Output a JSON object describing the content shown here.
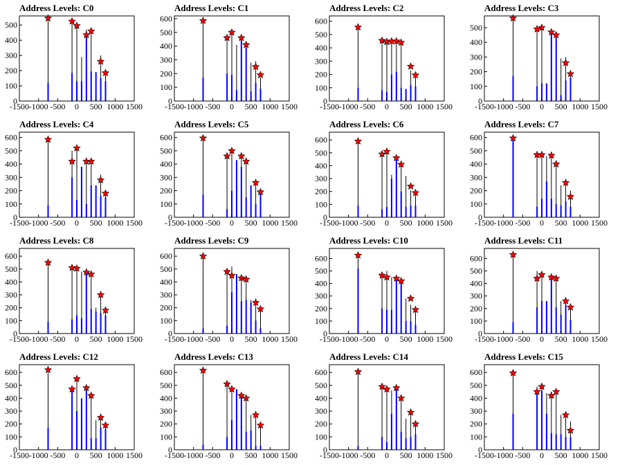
{
  "figure": {
    "layout": {
      "rows": 4,
      "cols": 4
    },
    "colors": {
      "spike_blue": "#0000ff",
      "spike_black": "#000000",
      "star_fill": "#ff0000",
      "star_stroke": "#000000"
    },
    "marker": "red-star"
  },
  "chart_data": [
    {
      "type": "bar",
      "title": "Address Levels: C0",
      "xlim": [
        -1500,
        1500
      ],
      "ylim": [
        0,
        560
      ],
      "xticks": [
        -1500,
        -1000,
        -500,
        0,
        500,
        1000,
        1500
      ],
      "yticks": [
        0,
        100,
        200,
        300,
        400,
        500
      ],
      "x": [
        -750,
        -125,
        0,
        125,
        250,
        375,
        500,
        625,
        750
      ],
      "values": [
        540,
        520,
        495,
        290,
        470,
        455,
        190,
        300,
        170
      ],
      "blue_values": [
        120,
        185,
        130,
        130,
        420,
        195,
        190,
        150,
        130
      ],
      "peaks_x": [
        -750,
        -125,
        0,
        250,
        375,
        625,
        750
      ],
      "peaks_y": [
        545,
        525,
        495,
        435,
        460,
        260,
        185
      ]
    },
    {
      "type": "bar",
      "title": "Address Levels: C1",
      "xlim": [
        -1500,
        1500
      ],
      "ylim": [
        0,
        620
      ],
      "xticks": [
        -1500,
        -1000,
        -500,
        0,
        500,
        1000,
        1500
      ],
      "yticks": [
        0,
        100,
        200,
        300,
        400,
        500,
        600
      ],
      "x": [
        -750,
        -125,
        0,
        125,
        250,
        375,
        500,
        625,
        750
      ],
      "values": [
        590,
        460,
        500,
        410,
        470,
        410,
        280,
        290,
        170
      ],
      "blue_values": [
        170,
        200,
        190,
        80,
        440,
        390,
        70,
        130,
        90
      ],
      "peaks_x": [
        -750,
        -125,
        0,
        250,
        375,
        625,
        750
      ],
      "peaks_y": [
        585,
        460,
        500,
        460,
        410,
        250,
        190
      ]
    },
    {
      "type": "bar",
      "title": "Address Levels: C2",
      "xlim": [
        -1500,
        1500
      ],
      "ylim": [
        0,
        640
      ],
      "xticks": [
        -1500,
        -1000,
        -500,
        0,
        500,
        1000,
        1500
      ],
      "yticks": [
        0,
        100,
        200,
        300,
        400,
        500,
        600
      ],
      "x": [
        -750,
        -125,
        0,
        125,
        250,
        375,
        500,
        625,
        750
      ],
      "values": [
        560,
        460,
        470,
        460,
        460,
        450,
        90,
        230,
        190
      ],
      "blue_values": [
        100,
        80,
        70,
        200,
        220,
        100,
        90,
        120,
        110
      ],
      "peaks_x": [
        -750,
        -125,
        0,
        125,
        250,
        375,
        625,
        750
      ],
      "peaks_y": [
        555,
        455,
        445,
        450,
        450,
        440,
        260,
        195
      ]
    },
    {
      "type": "bar",
      "title": "Address Levels: C3",
      "xlim": [
        -1500,
        1500
      ],
      "ylim": [
        0,
        580
      ],
      "xticks": [
        -1500,
        -1000,
        -500,
        0,
        500,
        1000,
        1500
      ],
      "yticks": [
        0,
        100,
        200,
        300,
        400,
        500
      ],
      "x": [
        -750,
        -125,
        0,
        125,
        250,
        375,
        500,
        625,
        750
      ],
      "values": [
        555,
        480,
        500,
        120,
        470,
        460,
        290,
        300,
        170
      ],
      "blue_values": [
        170,
        100,
        120,
        120,
        470,
        430,
        40,
        140,
        160
      ],
      "peaks_x": [
        -750,
        -125,
        0,
        250,
        375,
        625,
        750
      ],
      "peaks_y": [
        565,
        490,
        500,
        470,
        450,
        260,
        185
      ]
    },
    {
      "type": "bar",
      "title": "Address Levels: C4",
      "xlim": [
        -1500,
        1500
      ],
      "ylim": [
        0,
        640
      ],
      "xticks": [
        -1500,
        -1000,
        -500,
        0,
        500,
        1000,
        1500
      ],
      "yticks": [
        0,
        100,
        200,
        300,
        400,
        500,
        600
      ],
      "x": [
        -750,
        -125,
        0,
        125,
        250,
        375,
        500,
        625,
        750
      ],
      "values": [
        600,
        500,
        520,
        380,
        430,
        420,
        240,
        320,
        170
      ],
      "blue_values": [
        90,
        300,
        130,
        380,
        100,
        240,
        240,
        160,
        150
      ],
      "peaks_x": [
        -750,
        -125,
        0,
        250,
        375,
        625,
        750
      ],
      "peaks_y": [
        585,
        420,
        520,
        420,
        420,
        280,
        180
      ]
    },
    {
      "type": "bar",
      "title": "Address Levels: C5",
      "xlim": [
        -1500,
        1500
      ],
      "ylim": [
        0,
        640
      ],
      "xticks": [
        -1500,
        -1000,
        -500,
        0,
        500,
        1000,
        1500
      ],
      "yticks": [
        0,
        100,
        200,
        300,
        400,
        500,
        600
      ],
      "x": [
        -750,
        -125,
        0,
        125,
        250,
        375,
        500,
        625,
        750
      ],
      "values": [
        600,
        470,
        510,
        430,
        480,
        420,
        240,
        280,
        180
      ],
      "blue_values": [
        170,
        60,
        200,
        430,
        380,
        150,
        240,
        100,
        180
      ],
      "peaks_x": [
        -750,
        -125,
        0,
        250,
        375,
        625,
        750
      ],
      "peaks_y": [
        595,
        460,
        500,
        460,
        420,
        260,
        190
      ]
    },
    {
      "type": "bar",
      "title": "Address Levels: C6",
      "xlim": [
        -1500,
        1500
      ],
      "ylim": [
        0,
        660
      ],
      "xticks": [
        -1500,
        -1000,
        -500,
        0,
        500,
        1000,
        1500
      ],
      "yticks": [
        0,
        100,
        200,
        300,
        400,
        500,
        600
      ],
      "x": [
        -750,
        -125,
        0,
        125,
        250,
        375,
        500,
        625,
        750
      ],
      "values": [
        600,
        500,
        520,
        330,
        460,
        420,
        320,
        210,
        180
      ],
      "blue_values": [
        90,
        60,
        80,
        300,
        460,
        200,
        80,
        90,
        90
      ],
      "peaks_x": [
        -750,
        -125,
        0,
        250,
        375,
        625,
        750
      ],
      "peaks_y": [
        590,
        490,
        510,
        460,
        410,
        240,
        190
      ]
    },
    {
      "type": "bar",
      "title": "Address Levels: C7",
      "xlim": [
        -1500,
        1500
      ],
      "ylim": [
        0,
        640
      ],
      "xticks": [
        -1500,
        -1000,
        -500,
        0,
        500,
        1000,
        1500
      ],
      "yticks": [
        0,
        100,
        200,
        300,
        400,
        500,
        600
      ],
      "x": [
        -750,
        -125,
        0,
        125,
        250,
        375,
        500,
        625,
        750
      ],
      "values": [
        610,
        470,
        480,
        460,
        470,
        410,
        240,
        270,
        200
      ],
      "blue_values": [
        600,
        80,
        140,
        270,
        140,
        100,
        90,
        120,
        80
      ],
      "peaks_x": [
        -750,
        -125,
        0,
        250,
        375,
        625,
        750
      ],
      "peaks_y": [
        595,
        470,
        470,
        465,
        400,
        260,
        155
      ]
    },
    {
      "type": "bar",
      "title": "Address Levels: C8",
      "xlim": [
        -1500,
        1500
      ],
      "ylim": [
        0,
        660
      ],
      "xticks": [
        -1500,
        -1000,
        -500,
        0,
        500,
        1000,
        1500
      ],
      "yticks": [
        0,
        100,
        200,
        300,
        400,
        500,
        600
      ],
      "x": [
        -750,
        -125,
        0,
        125,
        250,
        375,
        500,
        625,
        750
      ],
      "values": [
        560,
        500,
        510,
        480,
        460,
        460,
        200,
        300,
        190
      ],
      "blue_values": [
        90,
        110,
        140,
        120,
        460,
        190,
        170,
        160,
        140
      ],
      "peaks_x": [
        -750,
        -125,
        0,
        250,
        375,
        625,
        750
      ],
      "peaks_y": [
        550,
        510,
        505,
        475,
        460,
        300,
        180
      ]
    },
    {
      "type": "bar",
      "title": "Address Levels: C9",
      "xlim": [
        -1500,
        1500
      ],
      "ylim": [
        0,
        660
      ],
      "xticks": [
        -1500,
        -1000,
        -500,
        0,
        500,
        1000,
        1500
      ],
      "yticks": [
        0,
        100,
        200,
        300,
        400,
        500,
        600
      ],
      "x": [
        -750,
        -125,
        0,
        125,
        250,
        375,
        500,
        625,
        750
      ],
      "values": [
        600,
        480,
        520,
        430,
        440,
        420,
        260,
        270,
        190
      ],
      "blue_values": [
        40,
        60,
        320,
        460,
        250,
        260,
        240,
        100,
        40
      ],
      "peaks_x": [
        -750,
        -125,
        0,
        250,
        375,
        625,
        750
      ],
      "peaks_y": [
        600,
        480,
        450,
        430,
        420,
        240,
        190
      ]
    },
    {
      "type": "bar",
      "title": "Address Levels: C10",
      "xlim": [
        -1500,
        1500
      ],
      "ylim": [
        0,
        680
      ],
      "xticks": [
        -1500,
        -1000,
        -500,
        0,
        500,
        1000,
        1500
      ],
      "yticks": [
        0,
        100,
        200,
        300,
        400,
        500,
        600
      ],
      "x": [
        -750,
        -125,
        0,
        125,
        250,
        375,
        500,
        625,
        750
      ],
      "values": [
        640,
        490,
        500,
        450,
        440,
        440,
        280,
        230,
        190
      ],
      "blue_values": [
        520,
        200,
        190,
        190,
        440,
        410,
        100,
        100,
        70
      ],
      "peaks_x": [
        -750,
        -125,
        0,
        250,
        375,
        625,
        750
      ],
      "peaks_y": [
        625,
        465,
        450,
        440,
        420,
        280,
        190
      ]
    },
    {
      "type": "bar",
      "title": "Address Levels: C11",
      "xlim": [
        -1500,
        1500
      ],
      "ylim": [
        0,
        680
      ],
      "xticks": [
        -1500,
        -1000,
        -500,
        0,
        500,
        1000,
        1500
      ],
      "yticks": [
        0,
        100,
        200,
        300,
        400,
        500,
        600
      ],
      "x": [
        -750,
        -125,
        0,
        125,
        250,
        375,
        500,
        625,
        750
      ],
      "values": [
        640,
        500,
        480,
        260,
        440,
        440,
        260,
        260,
        200
      ],
      "blue_values": [
        90,
        210,
        260,
        260,
        440,
        210,
        150,
        230,
        110
      ],
      "peaks_x": [
        -750,
        -125,
        0,
        250,
        375,
        625,
        750
      ],
      "peaks_y": [
        630,
        440,
        470,
        450,
        440,
        260,
        210
      ]
    },
    {
      "type": "bar",
      "title": "Address Levels: C12",
      "xlim": [
        -1500,
        1500
      ],
      "ylim": [
        0,
        660
      ],
      "xticks": [
        -1500,
        -1000,
        -500,
        0,
        500,
        1000,
        1500
      ],
      "yticks": [
        0,
        100,
        200,
        300,
        400,
        500,
        600
      ],
      "x": [
        -750,
        -125,
        0,
        125,
        250,
        375,
        500,
        625,
        750
      ],
      "values": [
        600,
        490,
        550,
        400,
        490,
        420,
        230,
        280,
        200
      ],
      "blue_values": [
        170,
        480,
        300,
        400,
        460,
        90,
        90,
        170,
        160
      ],
      "peaks_x": [
        -750,
        -125,
        0,
        250,
        375,
        625,
        750
      ],
      "peaks_y": [
        620,
        470,
        550,
        480,
        420,
        250,
        190
      ]
    },
    {
      "type": "bar",
      "title": "Address Levels: C13",
      "xlim": [
        -1500,
        1500
      ],
      "ylim": [
        0,
        660
      ],
      "xticks": [
        -1500,
        -1000,
        -500,
        0,
        500,
        1000,
        1500
      ],
      "yticks": [
        0,
        100,
        200,
        300,
        400,
        500,
        600
      ],
      "x": [
        -750,
        -125,
        0,
        125,
        250,
        375,
        500,
        625,
        750
      ],
      "values": [
        600,
        510,
        500,
        470,
        440,
        420,
        270,
        300,
        180
      ],
      "blue_values": [
        40,
        100,
        230,
        470,
        440,
        140,
        150,
        30,
        30
      ],
      "peaks_x": [
        -750,
        -125,
        0,
        250,
        375,
        625,
        750
      ],
      "peaks_y": [
        615,
        510,
        470,
        420,
        400,
        270,
        190
      ]
    },
    {
      "type": "bar",
      "title": "Address Levels: C14",
      "xlim": [
        -1500,
        1500
      ],
      "ylim": [
        0,
        660
      ],
      "xticks": [
        -1500,
        -1000,
        -500,
        0,
        500,
        1000,
        1500
      ],
      "yticks": [
        0,
        100,
        200,
        300,
        400,
        500,
        600
      ],
      "x": [
        -750,
        -125,
        0,
        125,
        250,
        375,
        500,
        625,
        750
      ],
      "values": [
        600,
        480,
        500,
        460,
        480,
        420,
        240,
        280,
        200
      ],
      "blue_values": [
        30,
        100,
        60,
        280,
        470,
        140,
        90,
        100,
        120
      ],
      "peaks_x": [
        -750,
        -125,
        0,
        250,
        375,
        625,
        750
      ],
      "peaks_y": [
        605,
        490,
        470,
        480,
        400,
        290,
        200
      ]
    },
    {
      "type": "bar",
      "title": "Address Levels: C15",
      "xlim": [
        -1500,
        1500
      ],
      "ylim": [
        0,
        660
      ],
      "xticks": [
        -1500,
        -1000,
        -500,
        0,
        500,
        1000,
        1500
      ],
      "yticks": [
        0,
        100,
        200,
        300,
        400,
        500,
        600
      ],
      "x": [
        -750,
        -125,
        0,
        125,
        250,
        375,
        500,
        625,
        750
      ],
      "values": [
        600,
        490,
        500,
        440,
        450,
        470,
        270,
        260,
        220
      ],
      "blue_values": [
        280,
        460,
        460,
        280,
        130,
        120,
        120,
        100,
        100
      ],
      "peaks_x": [
        -750,
        -125,
        0,
        250,
        375,
        625,
        750
      ],
      "peaks_y": [
        595,
        450,
        490,
        420,
        450,
        270,
        150
      ]
    }
  ]
}
